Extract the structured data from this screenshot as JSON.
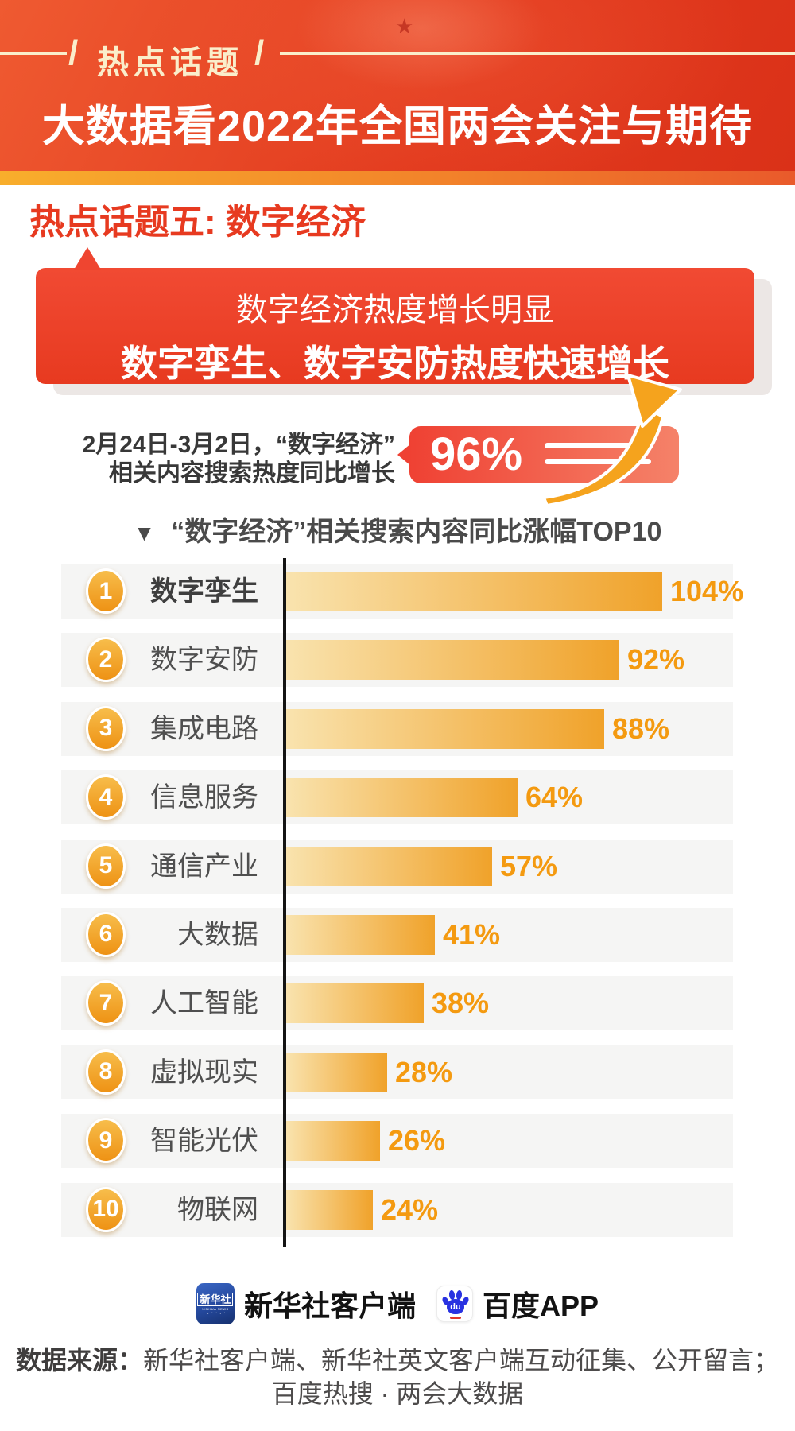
{
  "header": {
    "badge_label": "热点话题",
    "slash": "/",
    "title": "大数据看2022年全国两会关注与期待"
  },
  "section": {
    "heading": "热点话题五: 数字经济",
    "banner_line1": "数字经济热度增长明显",
    "banner_line2": "数字孪生、数字安防热度快速增长"
  },
  "stat": {
    "desc_line1": "2月24日-3月2日，“数字经济”",
    "desc_line2": "相关内容搜索热度同比增长",
    "value": "96%"
  },
  "chart_title": {
    "marker": "▼",
    "text": "“数字经济”相关搜索内容同比涨幅TOP10"
  },
  "chart_data": {
    "type": "bar",
    "orientation": "horizontal",
    "title": "“数字经济”相关搜索内容同比涨幅TOP10",
    "categories": [
      "数字孪生",
      "数字安防",
      "集成电路",
      "信息服务",
      "通信产业",
      "大数据",
      "人工智能",
      "虚拟现实",
      "智能光伏",
      "物联网"
    ],
    "ranks": [
      1,
      2,
      3,
      4,
      5,
      6,
      7,
      8,
      9,
      10
    ],
    "values": [
      104,
      92,
      88,
      64,
      57,
      41,
      38,
      28,
      26,
      24
    ],
    "value_labels": [
      "104%",
      "92%",
      "88%",
      "64%",
      "57%",
      "41%",
      "38%",
      "28%",
      "26%",
      "24%"
    ],
    "unit": "%",
    "xlim": [
      0,
      110
    ],
    "grid": false,
    "legend": false
  },
  "footer": {
    "xinhua_icon_title": "新华社",
    "xinhua_icon_subtitle": "XINHUA NEWS",
    "xinhua_icon_dots": "·.··.·",
    "xinhua_label": "新华社客户端",
    "baidu_icon_text": "du",
    "baidu_label": "百度APP",
    "source_label": "数据来源：",
    "source_line1": "新华社客户端、新华社英文客户端互动征集、公开留言；",
    "source_line2": "百度热搜 · 两会大数据"
  },
  "colors": {
    "header_red": "#e23a1e",
    "cream": "#faeecb",
    "gold_strip_start": "#f8ae2c",
    "gold_strip_end": "#e95a2b",
    "heading_red": "#e73a20",
    "banner_red": "#ee3d26",
    "stat_badge_red": "#ef4133",
    "arrow_orange": "#f5a31d",
    "bar_gradient_light": "#f9e3ae",
    "bar_gradient_dark": "#f0a22a",
    "value_orange": "#f49a10",
    "rank_badge_orange": "#ee9214",
    "card_bg": "#f5f5f4",
    "axis_line": "#141414",
    "xinhua_blue": "#24489c",
    "baidu_blue": "#2932e1"
  }
}
